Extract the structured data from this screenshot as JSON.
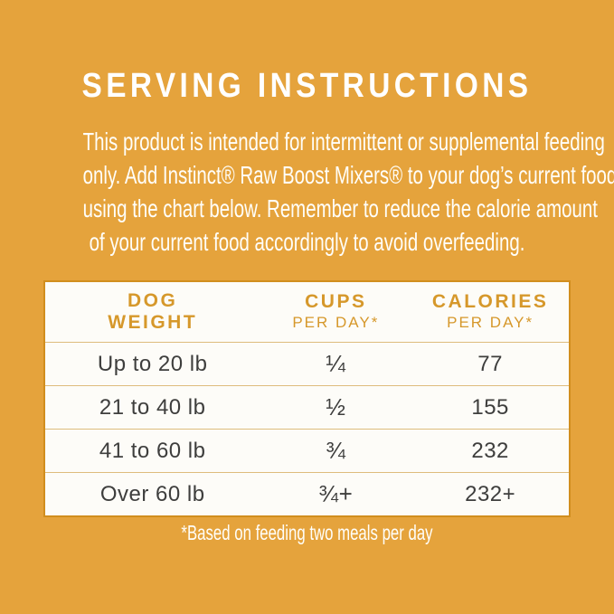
{
  "page": {
    "title": "SERVING INSTRUCTIONS",
    "intro_lines": [
      "This product is intended for intermittent or supplemental feeding",
      "only. Add Instinct® Raw Boost Mixers® to your dog’s current food",
      "using the chart below. Remember to reduce the calorie amount",
      "of your current food accordingly to avoid overfeeding."
    ],
    "footnote": "*Based on feeding two meals per day",
    "colors": {
      "background_gold": "#E5A33C",
      "header_text_gold": "#D6982B",
      "table_border_gold": "#D18E1E",
      "row_divider_gold": "#DEBC7D",
      "table_background": "#FDFCF8",
      "body_text_dark": "#3E3E3D",
      "text_white": "#FFFFFF"
    }
  },
  "table": {
    "columns": [
      {
        "label_top": "DOG",
        "label_bottom": "WEIGHT"
      },
      {
        "label_top": "CUPS",
        "label_bottom": "PER DAY*"
      },
      {
        "label_top": "CALORIES",
        "label_bottom": "PER DAY*"
      }
    ],
    "rows": [
      {
        "weight": "Up to 20 lb",
        "cups": "¼",
        "calories": "77"
      },
      {
        "weight": "21 to 40 lb",
        "cups": "½",
        "calories": "155"
      },
      {
        "weight": "41 to 60 lb",
        "cups": "¾",
        "calories": "232"
      },
      {
        "weight": "Over 60 lb",
        "cups": "¾+",
        "calories": "232+"
      }
    ]
  }
}
